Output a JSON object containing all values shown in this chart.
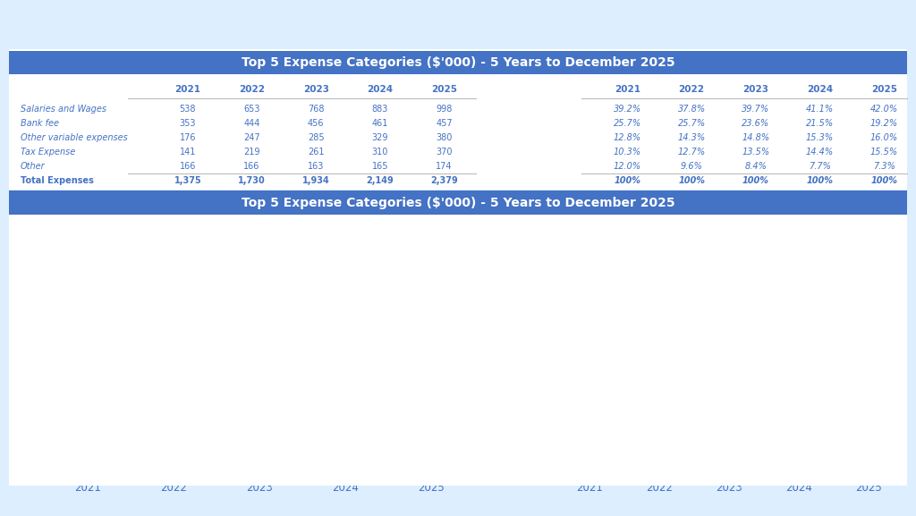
{
  "title": "Top 5 Expense Categories ($'000) - 5 Years to December 2025",
  "years": [
    2021,
    2022,
    2023,
    2024,
    2025
  ],
  "categories": [
    "Salaries and Wages",
    "Bank fee",
    "Other variable expenses",
    "Tax Expense",
    "Other"
  ],
  "values": {
    "Salaries and Wages": [
      538,
      653,
      768,
      883,
      998
    ],
    "Bank fee": [
      353,
      444,
      456,
      461,
      457
    ],
    "Other variable expenses": [
      176,
      247,
      285,
      329,
      380
    ],
    "Tax Expense": [
      141,
      219,
      261,
      310,
      370
    ],
    "Other": [
      166,
      166,
      163,
      165,
      174
    ]
  },
  "totals": [
    1375,
    1730,
    1934,
    2149,
    2379
  ],
  "percentages": {
    "Salaries and Wages": [
      "39.2%",
      "37.8%",
      "39.7%",
      "41.1%",
      "42.0%"
    ],
    "Bank fee": [
      "25.7%",
      "25.7%",
      "23.6%",
      "21.5%",
      "19.2%"
    ],
    "Other variable expenses": [
      "12.8%",
      "14.3%",
      "14.8%",
      "15.3%",
      "16.0%"
    ],
    "Tax Expense": [
      "10.3%",
      "12.7%",
      "13.5%",
      "14.4%",
      "15.5%"
    ],
    "Other": [
      "12.0%",
      "9.6%",
      "8.4%",
      "7.7%",
      "7.3%"
    ]
  },
  "bar_colors": {
    "Salaries and Wages": "#4472C4",
    "Bank fee": "#ED7D31",
    "Other variable expenses": "#A5A5A5",
    "Tax Expense": "#FFC000",
    "Other": "#5B9BD5"
  },
  "line_colors": {
    "Salaries and Wages": "#4472C4",
    "Bank fee": "#ED7D31",
    "Other variable expenses": "#A5A5A5",
    "Tax Expense": "#FFC000",
    "Other": "#5B9BD5"
  },
  "header_bg": "#4472C4",
  "header_text_color": "#FFFFFF",
  "table_text_color": "#4472C4",
  "bg_color": "#DDEEFF",
  "row_label_color": "#4472C4",
  "total_row_color": "#4472C4",
  "legend_labels": {
    "Salaries and Wages": "Salaries and\nWages",
    "Bank fee": "Bank fee",
    "Other variable expenses": "Other variable\nexpenses",
    "Tax Expense": "Tax Expense",
    "Other": "Other"
  }
}
